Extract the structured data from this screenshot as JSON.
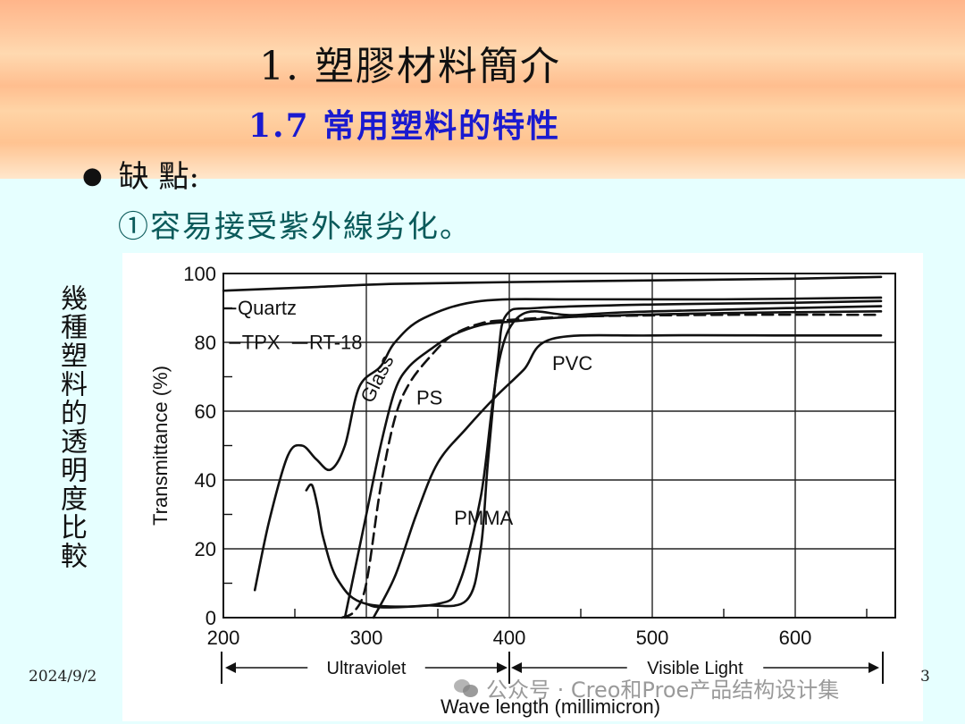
{
  "slide": {
    "title": "1.  塑膠材料簡介",
    "subtitle": "1.7  常用塑料的特性",
    "bullet": "缺 點:",
    "point": "①容易接受紫外線劣化。",
    "side_label": "幾種塑料的透明度比較",
    "date": "2024/9/2",
    "page_number": "3",
    "watermark": "公众号 · Creo和Proe产品结构设计集"
  },
  "chart_data": {
    "type": "line",
    "title": "",
    "xlabel": "Wave length (millimicron)",
    "ylabel": "Transmittance (%)",
    "xlim": [
      200,
      660
    ],
    "ylim": [
      0,
      100
    ],
    "x_ticks": [
      200,
      300,
      400,
      500,
      600
    ],
    "y_ticks": [
      0,
      20,
      40,
      60,
      80,
      100
    ],
    "grid": true,
    "regions": [
      {
        "label": "Ultraviolet",
        "from": 200,
        "to": 400
      },
      {
        "label": "Visible Light",
        "from": 400,
        "to": 660
      }
    ],
    "series": [
      {
        "name": "Quartz",
        "style": "solid",
        "x": [
          200,
          260,
          320,
          400,
          500,
          600,
          660
        ],
        "y": [
          95,
          96,
          97,
          97.5,
          98,
          98.5,
          99
        ]
      },
      {
        "name": "TPX",
        "style": "solid",
        "x": [
          222,
          232,
          245,
          255,
          265,
          275,
          285,
          295,
          310,
          320,
          340,
          380,
          450,
          550,
          660
        ],
        "y": [
          8,
          28,
          47,
          50,
          46,
          43,
          50,
          67,
          73,
          80,
          87,
          92,
          92.5,
          92.5,
          93
        ]
      },
      {
        "name": "RT-18",
        "style": "solid",
        "x": [
          258,
          262,
          266,
          270,
          280,
          300,
          350,
          365,
          380,
          400,
          450,
          550,
          660
        ],
        "y": [
          37,
          38.5,
          32,
          23,
          11,
          4,
          4,
          10,
          35,
          84,
          88,
          89.5,
          90.5
        ]
      },
      {
        "name": "Glass",
        "style": "solid",
        "x": [
          285,
          290,
          300,
          310,
          320,
          330,
          345,
          360,
          380,
          400,
          450,
          550,
          660
        ],
        "y": [
          0,
          10,
          30,
          50,
          66,
          73,
          78,
          82,
          85,
          86,
          87.5,
          88.5,
          89
        ]
      },
      {
        "name": "PS",
        "style": "dashed",
        "x": [
          283,
          292,
          300,
          310,
          320,
          330,
          345,
          360,
          380,
          400,
          450,
          550,
          660
        ],
        "y": [
          0,
          2,
          10,
          38,
          58,
          68,
          76,
          82,
          85.5,
          86.5,
          87.5,
          88,
          88
        ]
      },
      {
        "name": "PVC",
        "style": "solid",
        "x": [
          305,
          320,
          335,
          350,
          370,
          390,
          410,
          430,
          500,
          600,
          660
        ],
        "y": [
          0,
          12,
          30,
          45,
          55,
          64,
          72,
          81,
          82,
          82,
          82
        ]
      },
      {
        "name": "PMMA",
        "style": "solid",
        "x": [
          300,
          310,
          340,
          370,
          380,
          385,
          392,
          398,
          420,
          500,
          600,
          660
        ],
        "y": [
          4,
          3,
          3.5,
          5,
          20,
          45,
          75,
          88,
          90,
          91,
          91.5,
          92
        ]
      }
    ]
  }
}
